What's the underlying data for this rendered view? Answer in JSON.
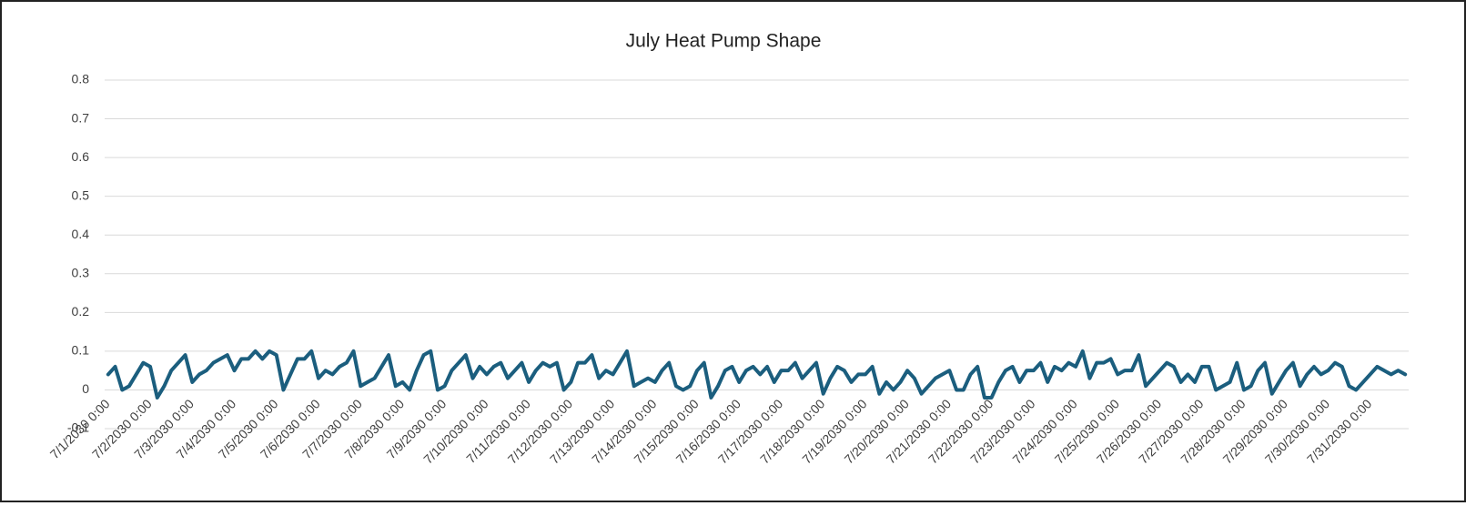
{
  "chart_data": {
    "type": "line",
    "title": "July Heat Pump Shape",
    "categories": [
      "7/1/2030 0:00",
      null,
      null,
      null,
      null,
      null,
      "7/2/2030 0:00",
      null,
      null,
      null,
      null,
      null,
      "7/3/2030 0:00",
      null,
      null,
      null,
      null,
      null,
      "7/4/2030 0:00",
      null,
      null,
      null,
      null,
      null,
      "7/5/2030 0:00",
      null,
      null,
      null,
      null,
      null,
      "7/6/2030 0:00",
      null,
      null,
      null,
      null,
      null,
      "7/7/2030 0:00",
      null,
      null,
      null,
      null,
      null,
      "7/8/2030 0:00",
      null,
      null,
      null,
      null,
      null,
      "7/9/2030 0:00",
      null,
      null,
      null,
      null,
      null,
      "7/10/2030 0:00",
      null,
      null,
      null,
      null,
      null,
      "7/11/2030 0:00",
      null,
      null,
      null,
      null,
      null,
      "7/12/2030 0:00",
      null,
      null,
      null,
      null,
      null,
      "7/13/2030 0:00",
      null,
      null,
      null,
      null,
      null,
      "7/14/2030 0:00",
      null,
      null,
      null,
      null,
      null,
      "7/15/2030 0:00",
      null,
      null,
      null,
      null,
      null,
      "7/16/2030 0:00",
      null,
      null,
      null,
      null,
      null,
      "7/17/2030 0:00",
      null,
      null,
      null,
      null,
      null,
      "7/18/2030 0:00",
      null,
      null,
      null,
      null,
      null,
      "7/19/2030 0:00",
      null,
      null,
      null,
      null,
      null,
      "7/20/2030 0:00",
      null,
      null,
      null,
      null,
      null,
      "7/21/2030 0:00",
      null,
      null,
      null,
      null,
      null,
      "7/22/2030 0:00",
      null,
      null,
      null,
      null,
      null,
      "7/23/2030 0:00",
      null,
      null,
      null,
      null,
      null,
      "7/24/2030 0:00",
      null,
      null,
      null,
      null,
      null,
      "7/25/2030 0:00",
      null,
      null,
      null,
      null,
      null,
      "7/26/2030 0:00",
      null,
      null,
      null,
      null,
      null,
      "7/27/2030 0:00",
      null,
      null,
      null,
      null,
      null,
      "7/28/2030 0:00",
      null,
      null,
      null,
      null,
      null,
      "7/29/2030 0:00",
      null,
      null,
      null,
      null,
      null,
      "7/30/2030 0:00",
      null,
      null,
      null,
      null,
      null,
      "7/31/2030 0:00",
      null,
      null,
      null,
      null,
      null
    ],
    "values": [
      0.04,
      0.06,
      0.0,
      0.01,
      0.04,
      0.07,
      0.06,
      -0.02,
      0.01,
      0.05,
      0.07,
      0.09,
      0.02,
      0.04,
      0.05,
      0.07,
      0.08,
      0.09,
      0.05,
      0.08,
      0.08,
      0.1,
      0.08,
      0.1,
      0.09,
      0.0,
      0.04,
      0.08,
      0.08,
      0.1,
      0.03,
      0.05,
      0.04,
      0.06,
      0.07,
      0.1,
      0.01,
      0.02,
      0.03,
      0.06,
      0.09,
      0.01,
      0.02,
      0.0,
      0.05,
      0.09,
      0.1,
      0.0,
      0.01,
      0.05,
      0.07,
      0.09,
      0.03,
      0.06,
      0.04,
      0.06,
      0.07,
      0.03,
      0.05,
      0.07,
      0.02,
      0.05,
      0.07,
      0.06,
      0.07,
      0.0,
      0.02,
      0.07,
      0.07,
      0.09,
      0.03,
      0.05,
      0.04,
      0.07,
      0.1,
      0.01,
      0.02,
      0.03,
      0.02,
      0.05,
      0.07,
      0.01,
      0.0,
      0.01,
      0.05,
      0.07,
      -0.02,
      0.01,
      0.05,
      0.06,
      0.02,
      0.05,
      0.06,
      0.04,
      0.06,
      0.02,
      0.05,
      0.05,
      0.07,
      0.03,
      0.05,
      0.07,
      -0.01,
      0.03,
      0.06,
      0.05,
      0.02,
      0.04,
      0.04,
      0.06,
      -0.01,
      0.02,
      0.0,
      0.02,
      0.05,
      0.03,
      -0.01,
      0.01,
      0.03,
      0.04,
      0.05,
      0.0,
      0.0,
      0.04,
      0.06,
      -0.02,
      -0.02,
      0.02,
      0.05,
      0.06,
      0.02,
      0.05,
      0.05,
      0.07,
      0.02,
      0.06,
      0.05,
      0.07,
      0.06,
      0.1,
      0.03,
      0.07,
      0.07,
      0.08,
      0.04,
      0.05,
      0.05,
      0.09,
      0.01,
      0.03,
      0.05,
      0.07,
      0.06,
      0.02,
      0.04,
      0.02,
      0.06,
      0.06,
      0.0,
      0.01,
      0.02,
      0.07,
      0.0,
      0.01,
      0.05,
      0.07,
      -0.01,
      0.02,
      0.05,
      0.07,
      0.01,
      0.04,
      0.06,
      0.04,
      0.05,
      0.07,
      0.06,
      0.01,
      0.0,
      0.02,
      0.04,
      0.06,
      0.05,
      0.04,
      0.05,
      0.04
    ],
    "color": "#1b5e7e",
    "ylim": [
      -0.1,
      0.8
    ],
    "yticks": [
      -0.1,
      0,
      0.1,
      0.2,
      0.3,
      0.4,
      0.5,
      0.6,
      0.7,
      0.8
    ],
    "grid": true
  }
}
